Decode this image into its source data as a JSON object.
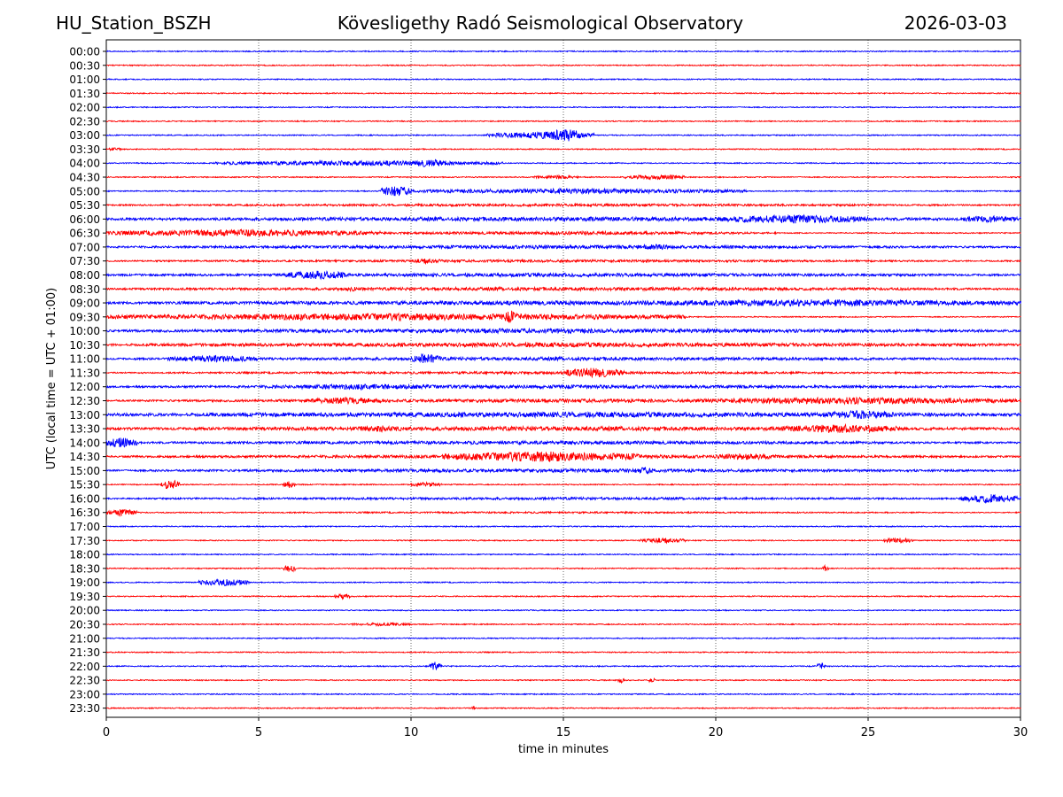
{
  "header": {
    "station": "HU_Station_BSZH",
    "title": "Kövesligethy Radó Seismological Observatory",
    "date": "2026-03-03"
  },
  "colors": {
    "even": "#0000ff",
    "odd": "#ff0000",
    "grid": "#000000"
  },
  "chart_data": {
    "type": "line",
    "title": "Kövesligethy Radó Seismological Observatory",
    "xlabel": "time in minutes",
    "ylabel": "UTC (local time = UTC + 01:00)",
    "xlim": [
      0,
      30
    ],
    "xticks": [
      0,
      5,
      10,
      15,
      20,
      25,
      30
    ],
    "grid": "vertical dotted at x ticks",
    "series": [
      {
        "name": "00:00",
        "color": "blue",
        "bursts": []
      },
      {
        "name": "00:30",
        "color": "red",
        "bursts": []
      },
      {
        "name": "01:00",
        "color": "blue",
        "bursts": []
      },
      {
        "name": "01:30",
        "color": "red",
        "bursts": []
      },
      {
        "name": "02:00",
        "color": "blue",
        "bursts": []
      },
      {
        "name": "02:30",
        "color": "red",
        "bursts": []
      },
      {
        "name": "03:00",
        "color": "blue",
        "bursts": [
          [
            12.5,
            16,
            4
          ],
          [
            14.4,
            15.6,
            8
          ]
        ]
      },
      {
        "name": "03:30",
        "color": "red",
        "bursts": [
          [
            0,
            0.5,
            2
          ]
        ]
      },
      {
        "name": "04:00",
        "color": "blue",
        "bursts": [
          [
            3.5,
            13,
            3
          ],
          [
            10,
            11.2,
            5
          ]
        ]
      },
      {
        "name": "04:30",
        "color": "red",
        "bursts": [
          [
            14,
            15.5,
            2
          ],
          [
            17,
            19,
            3
          ]
        ]
      },
      {
        "name": "05:00",
        "color": "blue",
        "bursts": [
          [
            9,
            10,
            6
          ],
          [
            10,
            21,
            3
          ]
        ]
      },
      {
        "name": "05:30",
        "color": "red",
        "bursts": [
          [
            0,
            30,
            1.5
          ]
        ]
      },
      {
        "name": "06:00",
        "color": "blue",
        "bursts": [
          [
            0,
            30,
            2.5
          ],
          [
            20,
            25,
            5
          ],
          [
            28,
            30,
            4
          ]
        ]
      },
      {
        "name": "06:30",
        "color": "red",
        "bursts": [
          [
            0,
            9,
            4
          ],
          [
            9,
            22,
            2
          ]
        ]
      },
      {
        "name": "07:00",
        "color": "blue",
        "bursts": [
          [
            0,
            30,
            2
          ],
          [
            17,
            19,
            3
          ]
        ]
      },
      {
        "name": "07:30",
        "color": "red",
        "bursts": [
          [
            0,
            30,
            1.5
          ],
          [
            10,
            11,
            3
          ]
        ]
      },
      {
        "name": "08:00",
        "color": "blue",
        "bursts": [
          [
            0,
            30,
            2
          ],
          [
            5.8,
            8,
            5
          ]
        ]
      },
      {
        "name": "08:30",
        "color": "red",
        "bursts": [
          [
            0,
            30,
            2
          ],
          [
            7.8,
            8.3,
            3
          ]
        ]
      },
      {
        "name": "09:00",
        "color": "blue",
        "bursts": [
          [
            0,
            30,
            2.5
          ],
          [
            16,
            30,
            4
          ]
        ]
      },
      {
        "name": "09:30",
        "color": "red",
        "bursts": [
          [
            0,
            19,
            4
          ],
          [
            13,
            13.5,
            7
          ]
        ]
      },
      {
        "name": "10:00",
        "color": "blue",
        "bursts": [
          [
            0,
            30,
            2.5
          ],
          [
            12,
            13.5,
            3
          ]
        ]
      },
      {
        "name": "10:30",
        "color": "red",
        "bursts": [
          [
            0,
            30,
            2.5
          ]
        ]
      },
      {
        "name": "11:00",
        "color": "blue",
        "bursts": [
          [
            0,
            30,
            2
          ],
          [
            2,
            5,
            4
          ],
          [
            10,
            11,
            6
          ]
        ]
      },
      {
        "name": "11:30",
        "color": "red",
        "bursts": [
          [
            0,
            30,
            1.5
          ],
          [
            15,
            17,
            6
          ]
        ]
      },
      {
        "name": "12:00",
        "color": "blue",
        "bursts": [
          [
            0,
            30,
            2
          ],
          [
            5,
            12,
            3
          ]
        ]
      },
      {
        "name": "12:30",
        "color": "red",
        "bursts": [
          [
            0,
            30,
            2
          ],
          [
            6.5,
            9,
            4
          ],
          [
            19,
            30,
            4
          ]
        ]
      },
      {
        "name": "13:00",
        "color": "blue",
        "bursts": [
          [
            0,
            30,
            3
          ],
          [
            23.5,
            26,
            5
          ]
        ]
      },
      {
        "name": "13:30",
        "color": "red",
        "bursts": [
          [
            0,
            30,
            2.5
          ],
          [
            8,
            10,
            4
          ],
          [
            22,
            26,
            5
          ]
        ]
      },
      {
        "name": "14:00",
        "color": "blue",
        "bursts": [
          [
            0,
            1,
            6
          ],
          [
            0,
            30,
            2
          ]
        ]
      },
      {
        "name": "14:30",
        "color": "red",
        "bursts": [
          [
            0,
            30,
            2
          ],
          [
            11,
            17.5,
            6
          ],
          [
            20,
            22,
            4
          ]
        ]
      },
      {
        "name": "15:00",
        "color": "blue",
        "bursts": [
          [
            0,
            30,
            2
          ],
          [
            17.3,
            18,
            4
          ]
        ]
      },
      {
        "name": "15:30",
        "color": "red",
        "bursts": [
          [
            1.8,
            2.4,
            6
          ],
          [
            5.8,
            6.2,
            4
          ],
          [
            10,
            11,
            3
          ]
        ]
      },
      {
        "name": "16:00",
        "color": "blue",
        "bursts": [
          [
            0,
            30,
            1.5
          ],
          [
            28,
            30,
            5
          ]
        ]
      },
      {
        "name": "16:30",
        "color": "red",
        "bursts": [
          [
            0,
            1,
            4
          ],
          [
            0,
            30,
            1
          ]
        ]
      },
      {
        "name": "17:00",
        "color": "blue",
        "bursts": []
      },
      {
        "name": "17:30",
        "color": "red",
        "bursts": [
          [
            17.5,
            19,
            3
          ],
          [
            25.5,
            26.5,
            3
          ]
        ]
      },
      {
        "name": "18:00",
        "color": "blue",
        "bursts": []
      },
      {
        "name": "18:30",
        "color": "red",
        "bursts": [
          [
            5.8,
            6.2,
            5
          ],
          [
            23.5,
            23.7,
            4
          ]
        ]
      },
      {
        "name": "19:00",
        "color": "blue",
        "bursts": [
          [
            3,
            4.7,
            4
          ]
        ]
      },
      {
        "name": "19:30",
        "color": "red",
        "bursts": [
          [
            7.5,
            8,
            3
          ]
        ]
      },
      {
        "name": "20:00",
        "color": "blue",
        "bursts": []
      },
      {
        "name": "20:30",
        "color": "red",
        "bursts": [
          [
            8,
            10,
            2
          ]
        ]
      },
      {
        "name": "21:00",
        "color": "blue",
        "bursts": []
      },
      {
        "name": "21:30",
        "color": "red",
        "bursts": []
      },
      {
        "name": "22:00",
        "color": "blue",
        "bursts": [
          [
            10.6,
            11,
            5
          ],
          [
            23.3,
            23.6,
            4
          ]
        ]
      },
      {
        "name": "22:30",
        "color": "red",
        "bursts": [
          [
            16.8,
            17,
            3
          ],
          [
            17.8,
            18,
            3
          ]
        ]
      },
      {
        "name": "23:00",
        "color": "blue",
        "bursts": []
      },
      {
        "name": "23:30",
        "color": "red",
        "bursts": [
          [
            12,
            12.1,
            3
          ]
        ]
      }
    ]
  }
}
